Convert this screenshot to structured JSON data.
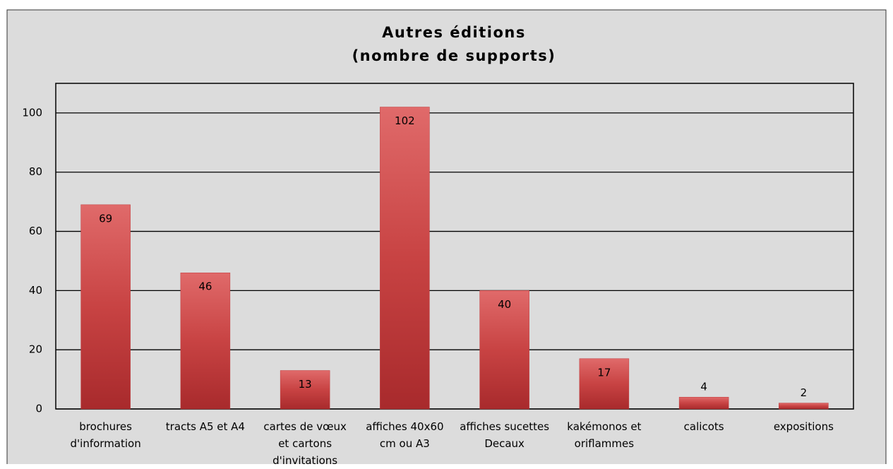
{
  "chart_data": {
    "type": "bar",
    "title": "Autres éditions",
    "subtitle": "(nombre de supports)",
    "categories": [
      "brochures\nd'information",
      "tracts A5 et A4",
      "cartes de vœux\net cartons\nd'invitations",
      "affiches 40x60\ncm ou A3",
      "affiches sucettes\nDecaux",
      "kakémonos et\noriflammes",
      "calicots",
      "expositions"
    ],
    "values": [
      69,
      46,
      13,
      102,
      40,
      17,
      4,
      2
    ],
    "color": "#c0393b",
    "ylim": [
      0,
      110
    ],
    "yticks": [
      0,
      20,
      40,
      60,
      80,
      100
    ],
    "grid": true
  }
}
